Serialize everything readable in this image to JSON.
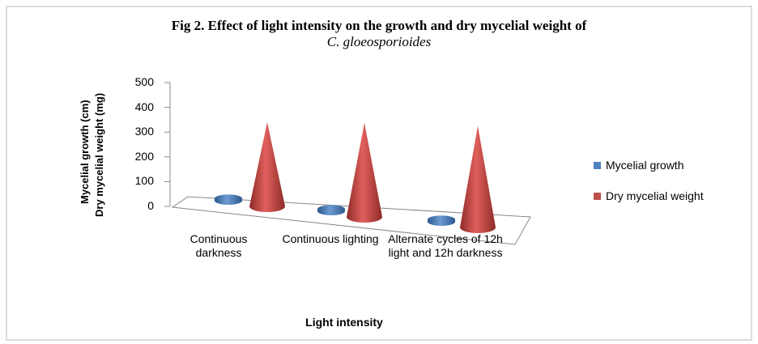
{
  "chart_data": {
    "type": "cone3d",
    "title": "Fig 2. Effect of light intensity on the growth and dry mycelial weight of",
    "subtitle": "C. gloeosporioides",
    "y_label": [
      "Mycelial growth (cm)",
      "Dry mycelial weight (mg)"
    ],
    "x_label": "Light intensity",
    "categories": [
      "Continuous darkness",
      "Continuous lighting",
      "Alternate cycles of 12h light and 12h darkness"
    ],
    "series": [
      {
        "name": "Mycelial growth",
        "color": "#4f81bd",
        "values": [
          9,
          9,
          9
        ]
      },
      {
        "name": "Dry mycelial weight",
        "color": "#c0504d",
        "values": [
          340,
          380,
          410
        ]
      }
    ],
    "ylim": [
      0,
      500
    ],
    "yticks": [
      0,
      100,
      200,
      300,
      400,
      500
    ]
  }
}
